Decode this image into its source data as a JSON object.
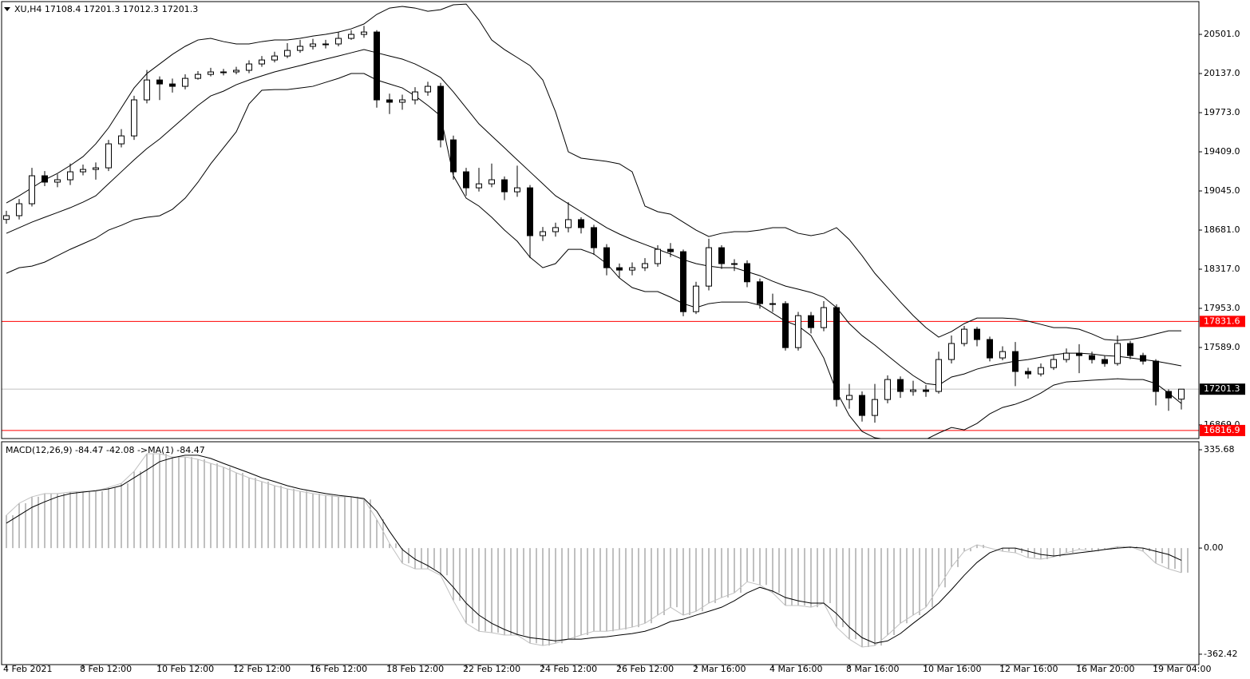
{
  "chart_data": [
    {
      "type": "candlestick",
      "title": "XU,H4  17108.4 17201.3 17012.3 17201.3",
      "categories": [
        "4 Feb 2021",
        null,
        null,
        null,
        null,
        null,
        "8 Feb 12:00",
        null,
        null,
        null,
        null,
        null,
        "10 Feb 12:00",
        null,
        null,
        null,
        null,
        null,
        "12 Feb 12:00",
        null,
        null,
        null,
        null,
        null,
        "16 Feb 12:00",
        null,
        null,
        null,
        null,
        null,
        "18 Feb 12:00",
        null,
        null,
        null,
        null,
        null,
        "22 Feb 12:00",
        null,
        null,
        null,
        null,
        null,
        "24 Feb 12:00",
        null,
        null,
        null,
        null,
        null,
        "26 Feb 12:00",
        null,
        null,
        null,
        null,
        null,
        "2 Mar 16:00",
        null,
        null,
        null,
        null,
        null,
        "4 Mar 16:00",
        null,
        null,
        null,
        null,
        null,
        "8 Mar 16:00",
        null,
        null,
        null,
        null,
        null,
        "10 Mar 16:00",
        null,
        null,
        null,
        null,
        null,
        "12 Mar 16:00",
        null,
        null,
        null,
        null,
        null,
        "16 Mar 20:00",
        null,
        null,
        null,
        null,
        null,
        "19 Mar 04:00",
        null,
        null
      ],
      "open": [
        18780,
        18815,
        18926,
        19186,
        19127,
        19149,
        19223,
        19245,
        19260,
        19483,
        19557,
        19892,
        20077,
        20040,
        20018,
        20092,
        20129,
        20152,
        20152,
        20167,
        20226,
        20263,
        20300,
        20352,
        20390,
        20412,
        20412,
        20464,
        20501,
        20523,
        19892,
        19870,
        19892,
        19966,
        20018,
        19520,
        19223,
        19074,
        19111,
        19149,
        19037,
        19074,
        18629,
        18666,
        18704,
        18778,
        18704,
        18517,
        18331,
        18309,
        18331,
        18369,
        18502,
        18480,
        17922,
        18160,
        18517,
        18369,
        18369,
        18200,
        17997,
        17997,
        17588,
        17885,
        17774,
        17960,
        17105,
        17143,
        16957,
        17105,
        17291,
        17180,
        17194,
        17180,
        17477,
        17626,
        17759,
        17663,
        17492,
        17551,
        17366,
        17343,
        17402,
        17477,
        17536,
        17514,
        17477,
        17440,
        17626,
        17514,
        17462,
        17180,
        17108.4
      ],
      "high": [
        18860,
        18970,
        19260,
        19230,
        19200,
        19300,
        19290,
        19310,
        19520,
        19620,
        19930,
        20170,
        20110,
        20090,
        20130,
        20160,
        20190,
        20180,
        20200,
        20260,
        20300,
        20340,
        20420,
        20450,
        20460,
        20450,
        20520,
        20540,
        20580,
        20540,
        19950,
        19940,
        20010,
        20060,
        20050,
        19560,
        19260,
        19260,
        19300,
        19180,
        19280,
        19100,
        18710,
        18750,
        18940,
        18800,
        18730,
        18550,
        18370,
        18380,
        18420,
        18540,
        18560,
        18500,
        18200,
        18600,
        18540,
        18410,
        18400,
        18230,
        18090,
        18020,
        17920,
        17920,
        18020,
        17990,
        17250,
        17180,
        17250,
        17330,
        17320,
        17280,
        17240,
        17550,
        17700,
        17790,
        17780,
        17690,
        17600,
        17640,
        17400,
        17440,
        17520,
        17580,
        17620,
        17550,
        17510,
        17700,
        17650,
        17540,
        17480,
        17200,
        17201.3
      ],
      "low": [
        18740,
        18780,
        18900,
        19090,
        19080,
        19100,
        19190,
        19150,
        19230,
        19450,
        19520,
        19860,
        19890,
        19960,
        19990,
        20080,
        20110,
        20120,
        20130,
        20140,
        20200,
        20240,
        20280,
        20330,
        20360,
        20370,
        20390,
        20450,
        20470,
        19820,
        19760,
        19800,
        19850,
        19930,
        19450,
        19150,
        19000,
        19040,
        19080,
        18960,
        18990,
        18420,
        18580,
        18620,
        18660,
        18650,
        18450,
        18260,
        18240,
        18260,
        18300,
        18340,
        18430,
        17880,
        17900,
        18120,
        18320,
        18300,
        18150,
        17950,
        17920,
        17560,
        17560,
        17720,
        17740,
        17040,
        17020,
        16900,
        16890,
        17070,
        17120,
        17140,
        17130,
        17160,
        17440,
        17600,
        17600,
        17460,
        17470,
        17230,
        17300,
        17320,
        17380,
        17450,
        17350,
        17440,
        17410,
        17420,
        17480,
        17430,
        17050,
        17000,
        17012.3
      ],
      "close": [
        18815,
        18926,
        19186,
        19127,
        19149,
        19223,
        19245,
        19260,
        19483,
        19557,
        19892,
        20077,
        20040,
        20018,
        20092,
        20129,
        20152,
        20152,
        20167,
        20226,
        20263,
        20300,
        20352,
        20390,
        20412,
        20412,
        20464,
        20501,
        20523,
        19892,
        19870,
        19892,
        19966,
        20018,
        19520,
        19223,
        19074,
        19111,
        19149,
        19037,
        19074,
        18629,
        18666,
        18704,
        18778,
        18704,
        18517,
        18331,
        18309,
        18331,
        18369,
        18502,
        18480,
        17922,
        18160,
        18517,
        18369,
        18369,
        18200,
        17997,
        17997,
        17588,
        17885,
        17774,
        17960,
        17105,
        17143,
        16957,
        17105,
        17291,
        17180,
        17194,
        17180,
        17477,
        17626,
        17759,
        17663,
        17492,
        17551,
        17366,
        17343,
        17402,
        17477,
        17536,
        17514,
        17477,
        17440,
        17626,
        17514,
        17462,
        17180,
        17120,
        17201.3
      ],
      "lines": [
        {
          "color": "#000000",
          "values": [
            18933,
            19000,
            19074,
            19149,
            19208,
            19282,
            19364,
            19483,
            19632,
            19817,
            20003,
            20137,
            20226,
            20315,
            20390,
            20449,
            20464,
            20434,
            20412,
            20412,
            20434,
            20449,
            20449,
            20464,
            20486,
            20501,
            20523,
            20553,
            20598,
            20687,
            20746,
            20761,
            20746,
            20716,
            20731,
            20776,
            20783,
            20635,
            20449,
            20360,
            20286,
            20211,
            20077,
            19780,
            19409,
            19350,
            19335,
            19320,
            19297,
            19223,
            18904,
            18852,
            18829,
            18755,
            18681,
            18621,
            18651,
            18666,
            18666,
            18681,
            18703,
            18703,
            18651,
            18629,
            18651,
            18703,
            18592,
            18443,
            18279,
            18146,
            18012,
            17886,
            17774,
            17685,
            17737,
            17811,
            17863,
            17863,
            17863,
            17856,
            17834,
            17804,
            17774,
            17774,
            17759,
            17715,
            17663,
            17655,
            17663,
            17685,
            17715,
            17744,
            17744
          ]
        },
        {
          "color": "#000000",
          "values": [
            18651,
            18703,
            18755,
            18800,
            18844,
            18889,
            18941,
            19000,
            19112,
            19223,
            19334,
            19439,
            19528,
            19632,
            19736,
            19840,
            19929,
            19973,
            20033,
            20077,
            20115,
            20152,
            20182,
            20211,
            20241,
            20271,
            20300,
            20330,
            20360,
            20330,
            20300,
            20271,
            20226,
            20167,
            20100,
            19966,
            19817,
            19669,
            19557,
            19446,
            19334,
            19223,
            19112,
            19000,
            18926,
            18852,
            18777,
            18703,
            18644,
            18592,
            18547,
            18502,
            18458,
            18406,
            18369,
            18346,
            18331,
            18331,
            18294,
            18257,
            18205,
            18160,
            18131,
            18101,
            18057,
            17960,
            17811,
            17700,
            17611,
            17514,
            17418,
            17328,
            17254,
            17239,
            17314,
            17343,
            17388,
            17418,
            17440,
            17462,
            17477,
            17499,
            17521,
            17536,
            17536,
            17529,
            17514,
            17507,
            17492,
            17477,
            17462,
            17440,
            17418
          ]
        },
        {
          "color": "#000000",
          "values": [
            18279,
            18331,
            18346,
            18383,
            18443,
            18502,
            18554,
            18606,
            18681,
            18725,
            18777,
            18800,
            18814,
            18874,
            18978,
            19126,
            19297,
            19446,
            19595,
            19855,
            19981,
            19988,
            19988,
            20003,
            20018,
            20055,
            20092,
            20137,
            20137,
            20077,
            20040,
            20003,
            19929,
            19840,
            19743,
            19186,
            18978,
            18904,
            18800,
            18681,
            18577,
            18428,
            18331,
            18369,
            18502,
            18502,
            18458,
            18369,
            18235,
            18146,
            18109,
            18109,
            18057,
            17997,
            17960,
            17997,
            18012,
            18012,
            18012,
            17982,
            17908,
            17834,
            17789,
            17700,
            17492,
            17180,
            16957,
            16808,
            16749,
            16734,
            16719,
            16719,
            16734,
            16793,
            16845,
            16823,
            16883,
            16972,
            17031,
            17061,
            17105,
            17165,
            17239,
            17269,
            17276,
            17284,
            17291,
            17298,
            17291,
            17291,
            17254,
            17165,
            17068
          ]
        }
      ],
      "levels": [
        {
          "value": 17831.6,
          "color": "#ff0000"
        },
        {
          "value": 16816.9,
          "color": "#ff0000"
        },
        {
          "value": 17201.3,
          "color": "#c0c0c0"
        }
      ],
      "ylim": [
        16742,
        20806
      ],
      "yticks": [
        {
          "value": 20501,
          "label": "20501.0"
        },
        {
          "value": 20137,
          "label": "20137.0"
        },
        {
          "value": 19773,
          "label": "19773.0"
        },
        {
          "value": 19409,
          "label": "19409.0"
        },
        {
          "value": 19045,
          "label": "19045.0"
        },
        {
          "value": 18681,
          "label": "18681.0"
        },
        {
          "value": 18317,
          "label": "18317.0"
        },
        {
          "value": 17953,
          "label": "17953.0"
        },
        {
          "value": 17589,
          "label": "17589.0"
        },
        {
          "value": 16869,
          "label": "16869.0"
        }
      ]
    },
    {
      "type": "macd",
      "title": "MACD(12,26,9) -84.47 -42.08  ->MA(1) -84.47",
      "histogram": {
        "color": "#808080",
        "values": [
          112,
          153,
          175,
          186,
          186,
          191,
          194,
          194,
          207,
          221,
          262,
          322,
          322,
          311,
          311,
          303,
          289,
          276,
          257,
          240,
          227,
          213,
          202,
          194,
          186,
          180,
          175,
          175,
          166,
          98,
          16,
          -52,
          -71,
          -71,
          -93,
          -180,
          -257,
          -284,
          -289,
          -297,
          -297,
          -325,
          -333,
          -325,
          -311,
          -297,
          -284,
          -284,
          -278,
          -270,
          -257,
          -229,
          -202,
          -229,
          -216,
          -188,
          -169,
          -153,
          -115,
          -126,
          -153,
          -196,
          -196,
          -202,
          -188,
          -270,
          -311,
          -338,
          -333,
          -297,
          -257,
          -229,
          -202,
          -134,
          -65,
          -11,
          11,
          0,
          -11,
          -16,
          -33,
          -38,
          -30,
          -16,
          -5,
          -11,
          -5,
          5,
          5,
          -11,
          -52,
          -71,
          -84
        ]
      },
      "signal": {
        "color": "#000000",
        "values": [
          85,
          112,
          139,
          158,
          175,
          186,
          191,
          196,
          202,
          213,
          240,
          267,
          295,
          308,
          317,
          317,
          306,
          289,
          273,
          257,
          240,
          227,
          213,
          202,
          194,
          186,
          180,
          175,
          169,
          126,
          57,
          -5,
          -38,
          -60,
          -87,
          -134,
          -188,
          -229,
          -257,
          -278,
          -295,
          -306,
          -311,
          -317,
          -311,
          -311,
          -306,
          -303,
          -297,
          -292,
          -284,
          -270,
          -251,
          -243,
          -229,
          -216,
          -202,
          -180,
          -153,
          -134,
          -147,
          -169,
          -180,
          -188,
          -188,
          -224,
          -270,
          -306,
          -325,
          -317,
          -292,
          -257,
          -224,
          -188,
          -142,
          -93,
          -49,
          -16,
          0,
          0,
          -11,
          -22,
          -27,
          -22,
          -16,
          -11,
          -5,
          0,
          3,
          0,
          -11,
          -22,
          -42
        ]
      },
      "ylim": [
        -398,
        363
      ],
      "yticks": [
        335.68,
        {
          "value": 0,
          "label": "0.00"
        },
        -362.42
      ]
    }
  ]
}
